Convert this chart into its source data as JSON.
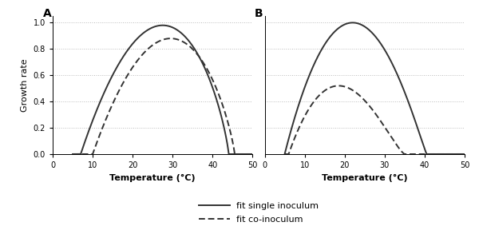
{
  "panel_A": {
    "label": "A",
    "single_params": {
      "mu_opt": 0.98,
      "T_opt": 27.5,
      "T_min": 7.0,
      "T_max": 44.0,
      "shape": 1.0
    },
    "co_params": {
      "mu_opt": 0.88,
      "T_opt": 29.5,
      "T_min": 10.0,
      "T_max": 45.5,
      "shape": 1.0
    }
  },
  "panel_B": {
    "label": "B",
    "single_params": {
      "mu_opt": 1.0,
      "T_opt": 22.0,
      "T_min": 5.0,
      "T_max": 40.5,
      "shape": 1.0
    },
    "co_params": {
      "mu_opt": 0.52,
      "T_opt": 18.5,
      "T_min": 6.0,
      "T_max": 35.0,
      "shape": 1.0
    }
  },
  "xlim": [
    5,
    50
  ],
  "xticks": [
    0,
    10,
    20,
    30,
    40,
    50
  ],
  "ylim": [
    0.0,
    1.05
  ],
  "yticks": [
    0.0,
    0.2,
    0.4,
    0.6,
    0.8,
    1.0
  ],
  "xlabel": "Temperature (°C)",
  "ylabel": "Growth rate",
  "line_color": "#333333",
  "line_width": 1.4,
  "dash_on": 4,
  "dash_off": 2,
  "legend_labels": [
    "fit single inoculum",
    "fit co-inoculum"
  ],
  "grid_color": "#bbbbbb",
  "grid_style": "dotted",
  "background": "#ffffff",
  "tick_fontsize": 7,
  "label_fontsize": 8,
  "panel_label_fontsize": 10
}
